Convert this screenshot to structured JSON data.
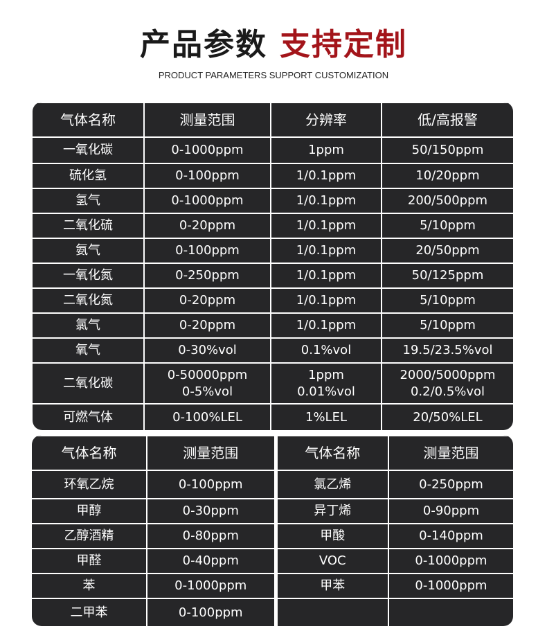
{
  "title": {
    "part1": "产品参数",
    "part2": "支持定制",
    "subtitle": "PRODUCT PARAMETERS SUPPORT CUSTOMIZATION"
  },
  "accent": "#a3141a",
  "table1": {
    "headers": [
      "气体名称",
      "测量范围",
      "分辨率",
      "低/高报警"
    ],
    "rows": [
      [
        "一氧化碳",
        "0-1000ppm",
        "1ppm",
        "50/150ppm"
      ],
      [
        "硫化氢",
        "0-100ppm",
        "1/0.1ppm",
        "10/20ppm"
      ],
      [
        "氢气",
        "0-1000ppm",
        "1/0.1ppm",
        "200/500ppm"
      ],
      [
        "二氧化硫",
        "0-20ppm",
        "1/0.1ppm",
        "5/10ppm"
      ],
      [
        "氨气",
        "0-100ppm",
        "1/0.1ppm",
        "20/50ppm"
      ],
      [
        "一氧化氮",
        "0-250ppm",
        "1/0.1ppm",
        "50/125ppm"
      ],
      [
        "二氧化氮",
        "0-20ppm",
        "1/0.1ppm",
        "5/10ppm"
      ],
      [
        "氯气",
        "0-20ppm",
        "1/0.1ppm",
        "5/10ppm"
      ],
      [
        "氧气",
        "0-30%vol",
        "0.1%vol",
        "19.5/23.5%vol"
      ],
      [
        "二氧化碳",
        "0-50000ppm\n0-5%vol",
        "1ppm\n0.01%vol",
        "2000/5000ppm\n0.2/0.5%vol"
      ],
      [
        "可燃气体",
        "0-100%LEL",
        "1%LEL",
        "20/50%LEL"
      ]
    ]
  },
  "table2": {
    "headers": [
      "气体名称",
      "测量范围",
      "气体名称",
      "测量范围"
    ],
    "rows": [
      [
        "环氧乙烷",
        "0-100ppm",
        "氯乙烯",
        "0-250ppm"
      ],
      [
        "甲醇",
        "0-30ppm",
        "异丁烯",
        "0-90ppm"
      ],
      [
        "乙醇酒精",
        "0-80ppm",
        "甲酸",
        "0-140ppm"
      ],
      [
        "甲醛",
        "0-40ppm",
        "VOC",
        "0-1000ppm"
      ],
      [
        "苯",
        "0-1000ppm",
        "甲苯",
        "0-1000ppm"
      ],
      [
        "二甲苯",
        "0-100ppm",
        "",
        ""
      ]
    ]
  }
}
